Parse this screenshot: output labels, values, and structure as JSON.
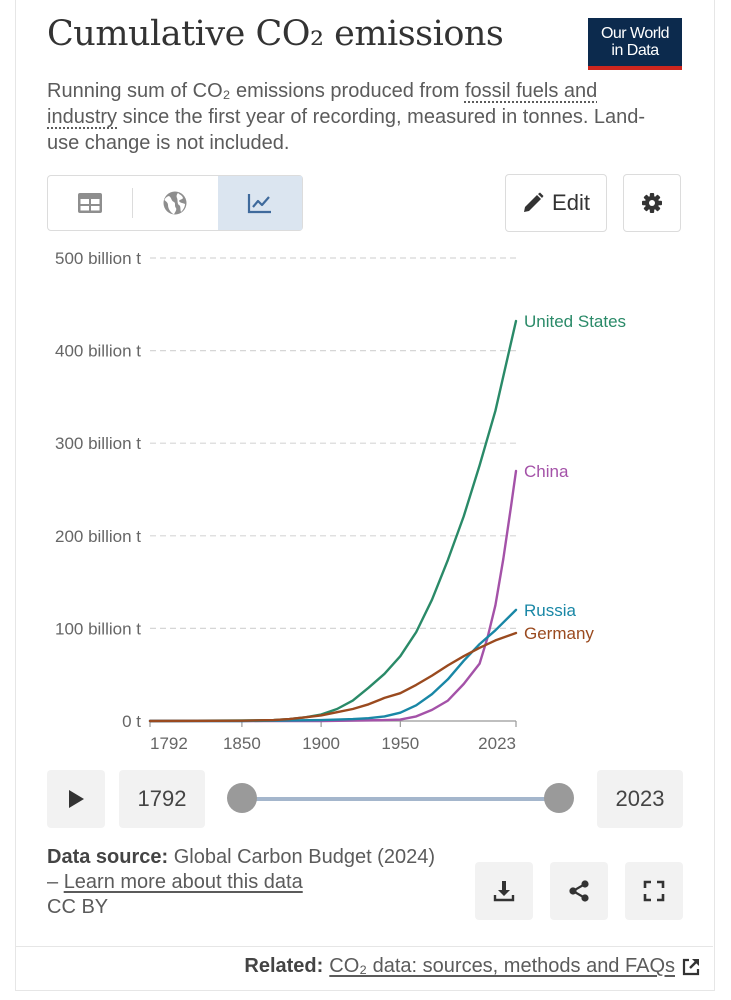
{
  "header": {
    "title": "Cumulative CO₂ emissions",
    "logo_line1": "Our World",
    "logo_line2": "in Data",
    "subtitle_pre": "Running sum of CO₂ emissions produced from ",
    "subtitle_link": "fossil fuels and industry",
    "subtitle_post": " since the first year of recording, measured in tonnes. Land-use change is not included."
  },
  "toolbar": {
    "tabs": [
      {
        "name": "table",
        "icon": "table-icon",
        "active": false
      },
      {
        "name": "map",
        "icon": "globe-icon",
        "active": false
      },
      {
        "name": "chart",
        "icon": "line-chart-icon",
        "active": true
      }
    ],
    "edit_label": "Edit",
    "settings_icon": "gear-icon"
  },
  "chart_data": {
    "type": "line",
    "ylim": [
      0,
      500
    ],
    "xlim": [
      1792,
      2023
    ],
    "y_ticks": [
      {
        "value": 0,
        "label": "0 t"
      },
      {
        "value": 100,
        "label": "100 billion t"
      },
      {
        "value": 200,
        "label": "200 billion t"
      },
      {
        "value": 300,
        "label": "300 billion t"
      },
      {
        "value": 400,
        "label": "400 billion t"
      },
      {
        "value": 500,
        "label": "500 billion t"
      }
    ],
    "x_ticks": [
      1792,
      1850,
      1900,
      1950,
      2023
    ],
    "grid": "horizontal-dashed",
    "legend": "inline-right",
    "series": [
      {
        "name": "United States",
        "color": "#2a8a68",
        "x": [
          1792,
          1850,
          1870,
          1880,
          1890,
          1900,
          1910,
          1920,
          1930,
          1940,
          1950,
          1960,
          1970,
          1980,
          1990,
          2000,
          2010,
          2023
        ],
        "y": [
          0,
          0.5,
          1,
          2,
          4,
          7,
          13,
          22,
          36,
          51,
          70,
          96,
          131,
          174,
          221,
          276,
          335,
          432
        ]
      },
      {
        "name": "China",
        "color": "#a452a8",
        "x": [
          1792,
          1900,
          1940,
          1950,
          1960,
          1970,
          1980,
          1990,
          2000,
          2005,
          2010,
          2015,
          2020,
          2023
        ],
        "y": [
          0,
          0,
          1,
          1.5,
          5,
          12,
          22,
          40,
          62,
          90,
          125,
          175,
          233,
          270
        ]
      },
      {
        "name": "Russia",
        "color": "#1987a6",
        "x": [
          1792,
          1850,
          1900,
          1920,
          1930,
          1940,
          1950,
          1960,
          1970,
          1980,
          1990,
          2000,
          2010,
          2023
        ],
        "y": [
          0,
          0,
          1,
          2,
          3,
          5,
          9,
          17,
          29,
          45,
          65,
          83,
          98,
          120
        ]
      },
      {
        "name": "Germany",
        "color": "#9a4a1f",
        "x": [
          1792,
          1850,
          1870,
          1880,
          1890,
          1900,
          1910,
          1920,
          1930,
          1940,
          1950,
          1960,
          1970,
          1980,
          1990,
          2000,
          2010,
          2023
        ],
        "y": [
          0,
          0.3,
          1,
          2,
          4,
          6,
          9.5,
          13,
          18,
          25,
          30,
          39,
          49,
          60,
          70,
          79,
          87,
          95
        ]
      }
    ]
  },
  "timeline": {
    "play_icon": "play-icon",
    "start_year": "1792",
    "end_year": "2023"
  },
  "footer": {
    "source_label": "Data source:",
    "source_text": " Global Carbon Budget (2024) – ",
    "source_link": "Learn more about this data",
    "license": "CC BY",
    "related_label": "Related:",
    "related_link": "CO₂ data: sources, methods and FAQs"
  }
}
